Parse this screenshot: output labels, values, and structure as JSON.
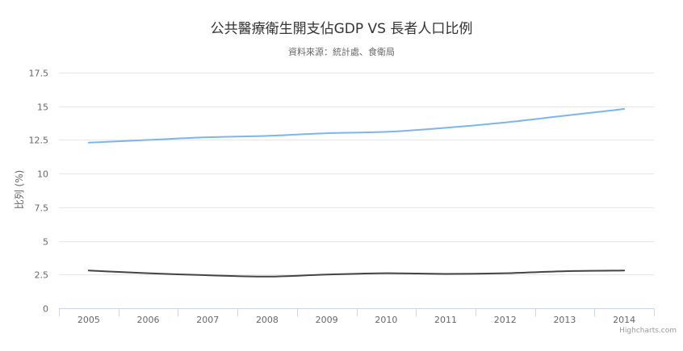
{
  "chart_data": {
    "type": "line",
    "title": "公共醫療衛生開支佔GDP VS 長者人口比例",
    "subtitle": "資料來源：統計處、食衛局",
    "xlabel": "",
    "ylabel": "比列 (%)",
    "categories": [
      "2005",
      "2006",
      "2007",
      "2008",
      "2009",
      "2010",
      "2011",
      "2012",
      "2013",
      "2014"
    ],
    "ylim": [
      0,
      17.5
    ],
    "yticks": [
      "0",
      "2.5",
      "5",
      "7.5",
      "10",
      "12.5",
      "15",
      "17.5"
    ],
    "grid": true,
    "legend": "none",
    "series": [
      {
        "values": [
          12.3,
          12.5,
          12.7,
          12.8,
          13.0,
          13.1,
          13.4,
          13.8,
          14.3,
          14.8
        ],
        "color": "#7cb5ec"
      },
      {
        "values": [
          2.8,
          2.6,
          2.45,
          2.35,
          2.5,
          2.6,
          2.55,
          2.6,
          2.75,
          2.8
        ],
        "color": "#434348"
      }
    ]
  },
  "credits": "Highcharts.com"
}
